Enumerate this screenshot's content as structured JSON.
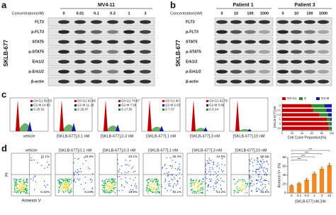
{
  "panel_a": {
    "letter": "a",
    "title": "MV4-11",
    "concentration_label": "Concentration(nM)",
    "concentrations": [
      "0",
      "0.01",
      "0.1",
      "0.3",
      "1",
      "3"
    ],
    "proteins": [
      "FLT3",
      "p-FLT3",
      "STAT5",
      "p-STAT5",
      "Erk1/2",
      "p-Erk1/2",
      "β-actin"
    ],
    "drug": "SKLB-677"
  },
  "panel_b": {
    "letter": "b",
    "groups": [
      "Patient 1",
      "Patient 3"
    ],
    "concentration_label": "Concentration(nM)",
    "concentrations": [
      "0",
      "10",
      "100",
      "1000",
      "0",
      "10",
      "100",
      "1000"
    ],
    "proteins": [
      "FLT3",
      "p-FLT3",
      "STAT5",
      "p-STAT5",
      "Erk1/2",
      "p-Erk1/2",
      "β-actin"
    ],
    "drug": "SKLB-677"
  },
  "panel_c": {
    "letter": "c",
    "histograms": [
      {
        "label": "vehicle",
        "stats": [
          "G0-G1 59.55",
          "G2-M 14.83",
          "S 25.62"
        ]
      },
      {
        "label": "[SKLB-677],0.1 nM",
        "stats": [
          "G0-G1 62.95",
          "G2-M 11.18",
          "S 25.87"
        ]
      },
      {
        "label": "[SKLB-677],0.3 nM",
        "stats": [
          "G0-G1 74.87",
          "G2-M 7.58",
          "S 17.55"
        ]
      },
      {
        "label": "[SKLB-677],1 nM",
        "stats": [
          "G0-G1 90",
          "G2-M 2.63",
          "S 7.37"
        ]
      },
      {
        "label": "[SKLB-677],3 nM",
        "stats": [
          "G0-G1 92.75",
          "G2-M 0.99",
          "S 6.24"
        ]
      },
      {
        "label": "[SKLB-677],10 nM",
        "stats": []
      }
    ],
    "cell_cycle_chart": {
      "type": "stacked-bar",
      "orientation": "horizontal",
      "y_label": "[SKLB-677] nM",
      "x_label": "Cell Cycle Proportion(%)",
      "categories": [
        "0",
        "0.1",
        "0.3",
        "1",
        "3",
        "10"
      ],
      "xlim": [
        0,
        100
      ],
      "xticks": [
        0,
        20,
        40,
        60,
        80,
        100
      ],
      "series": [
        {
          "name": "G0-G1",
          "color": "#c00000",
          "values": [
            59.55,
            62.95,
            74.87,
            90,
            92.75,
            94.1
          ]
        },
        {
          "name": "S",
          "color": "#2e8b2e",
          "values": [
            25.62,
            25.87,
            17.55,
            7.37,
            6.24,
            5.2
          ]
        },
        {
          "name": "G2-M",
          "color": "#1a1aa0",
          "values": [
            14.83,
            11.18,
            7.58,
            2.63,
            0.99,
            0.7
          ]
        }
      ]
    }
  },
  "panel_d": {
    "letter": "d",
    "y_axis": "PI",
    "x_axis": "Annexin V",
    "plots": [
      {
        "label": "vehicle",
        "upper": "11.1%",
        "lower": "6.32%"
      },
      {
        "label": "[SKLB-677],0.1 nM",
        "upper": "15.5%",
        "lower": "9.24%"
      },
      {
        "label": "[SKLB-677],0.3 nM",
        "upper": "23.1%",
        "lower": "10.9%"
      },
      {
        "label": "[SKLB-677],1 nM",
        "upper": "36.4%",
        "lower": "12.1%"
      },
      {
        "label": "[SKLB-677],3 nM",
        "upper": "44.9%",
        "lower": "14.2%"
      },
      {
        "label": "[SKLB-677],10 nM",
        "upper": "50.6%",
        "lower": "15.5%"
      }
    ],
    "apoptosis_chart": {
      "type": "bar",
      "y_label": "Annexin V+ (%)",
      "x_label": "[SKLB-677] nM,24h",
      "categories": [
        "0",
        "0.1",
        "0.3",
        "1",
        "3",
        "10"
      ],
      "values": [
        17,
        22,
        30,
        44,
        55,
        63
      ],
      "errors": [
        2,
        2,
        3,
        3,
        3,
        4
      ],
      "color": "#f08a24",
      "ylim": [
        0,
        80
      ],
      "yticks": [
        0,
        20,
        40,
        60,
        80
      ],
      "significance": [
        "***",
        "***",
        "***",
        "***"
      ]
    }
  }
}
